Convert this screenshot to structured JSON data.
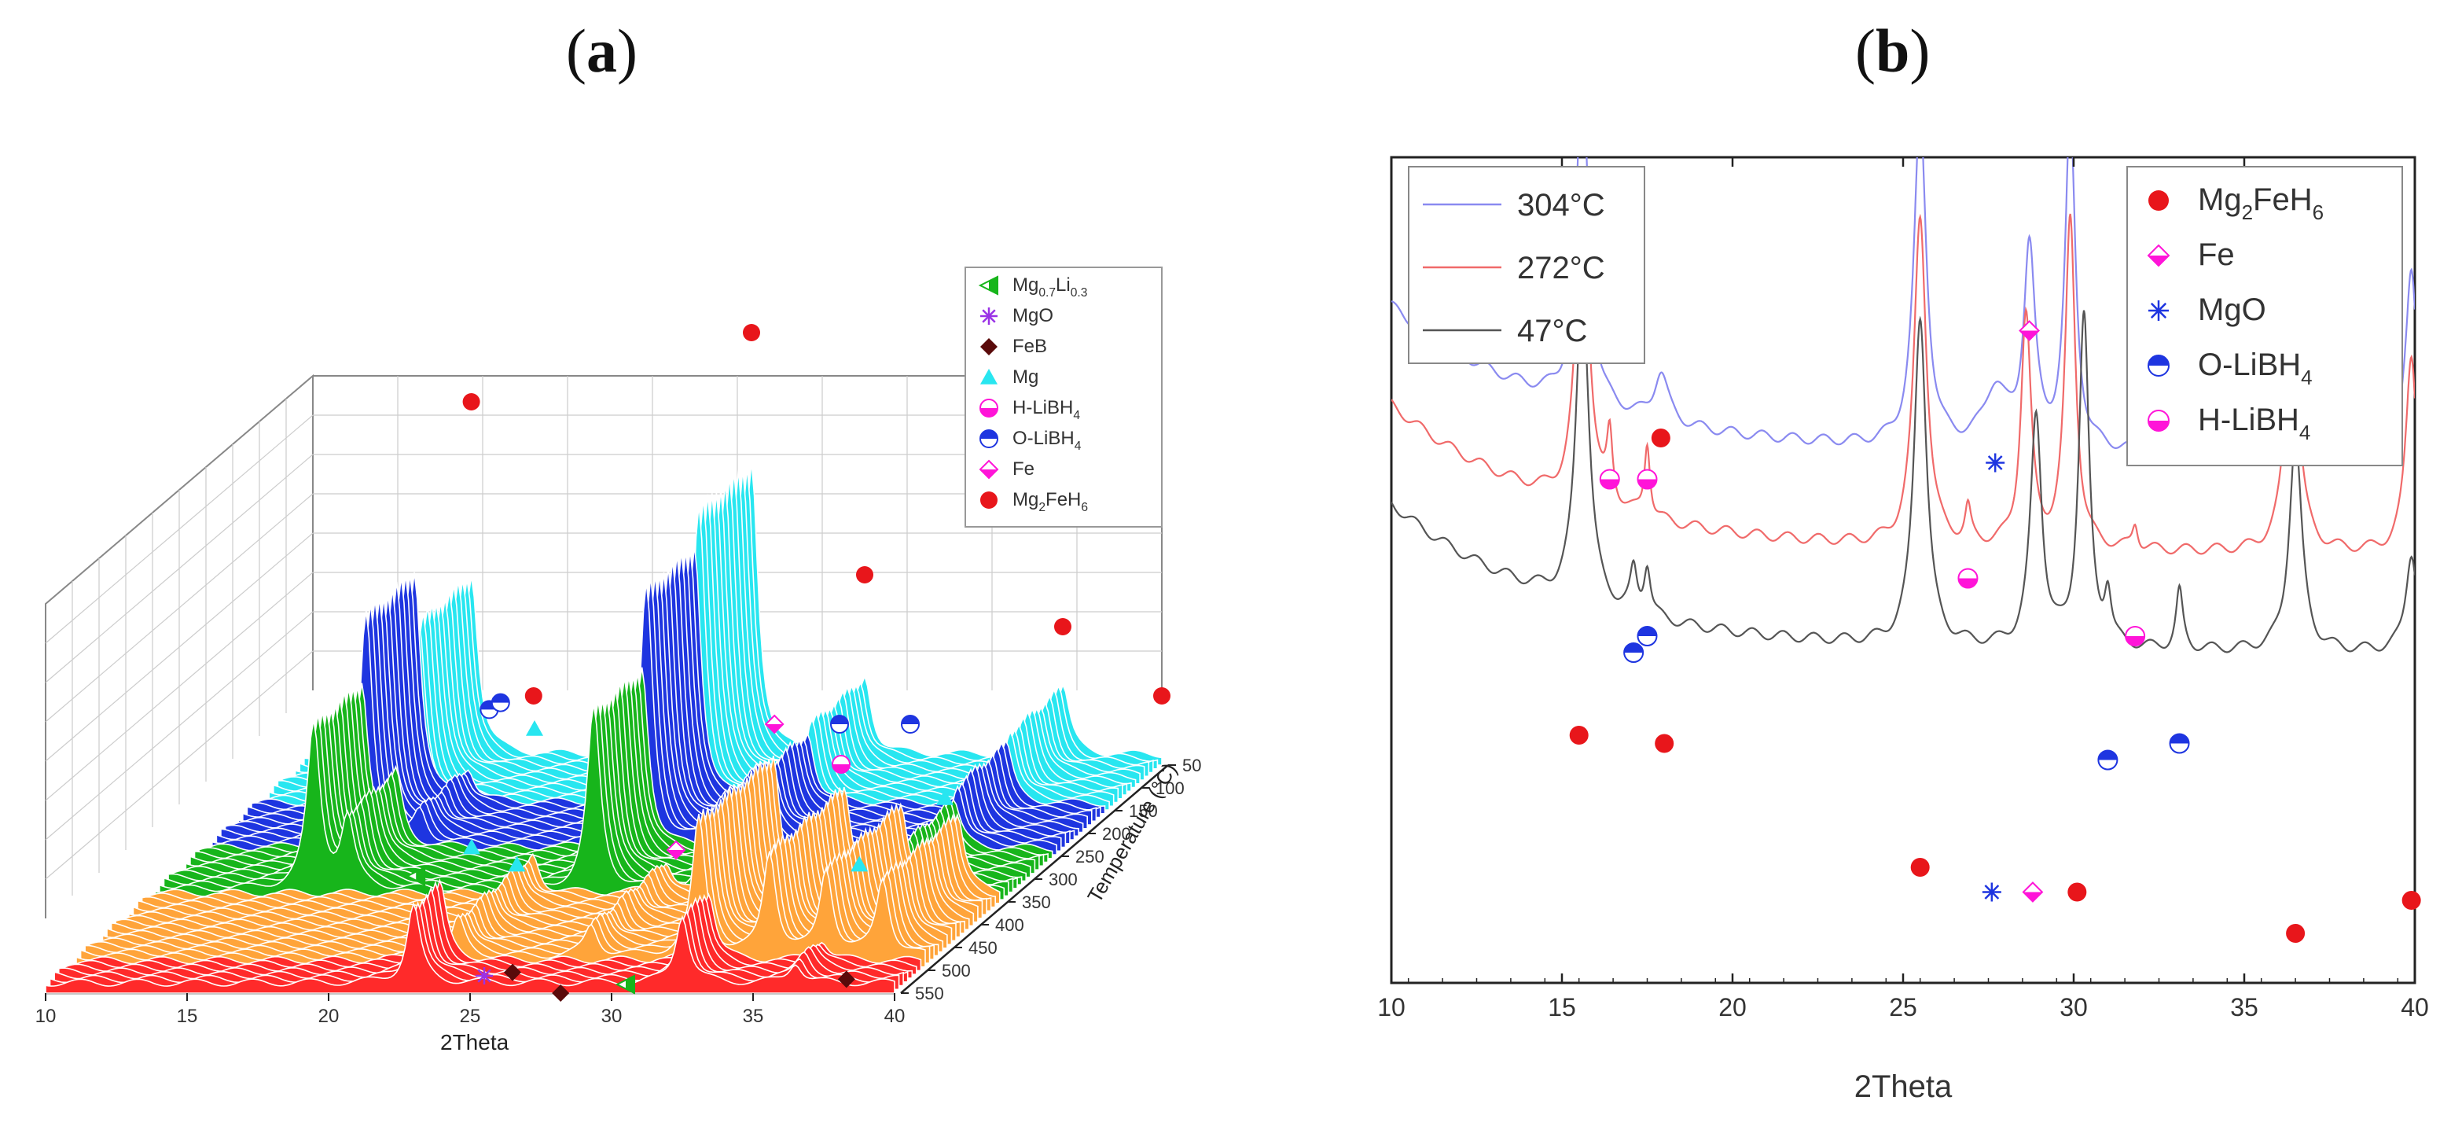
{
  "panels": {
    "a": {
      "label_open": "(",
      "letter": "a",
      "label_close": ")"
    },
    "b": {
      "label_open": "(",
      "letter": "b",
      "label_close": ")"
    }
  },
  "colors": {
    "red_marker": "#e8161b",
    "cyan": "#28e6f0",
    "blue": "#1e35e0",
    "green": "#17b51b",
    "orange": "#ffa43a",
    "red_trace": "#ff2a2a",
    "magenta": "#ff14d8",
    "purple": "#9a32e6",
    "dark_brown": "#5a0a0a",
    "trace_304": "#8a8af0",
    "trace_272": "#f06a6a",
    "trace_47": "#555555"
  },
  "chart_data": [
    {
      "type": "line",
      "title": "(a)",
      "xlabel": "2Theta",
      "ylabel": "Temperature (°C)",
      "xlim": [
        10,
        40
      ],
      "x_ticks": [
        "10",
        "15",
        "20",
        "25",
        "30",
        "35",
        "40"
      ],
      "temperature_ticks": [
        "50",
        "100",
        "150",
        "200",
        "250",
        "300",
        "350",
        "400",
        "450",
        "500",
        "550"
      ],
      "temperature_axis_label": "Temperature (°C)",
      "grid": true,
      "legend_position": "top-right",
      "legend": [
        {
          "parts": [
            {
              "t": "Mg",
              "s": "base"
            },
            {
              "t": "0.7",
              "s": "sub"
            },
            {
              "t": "Li",
              "s": "base"
            },
            {
              "t": "0.3",
              "s": "sub"
            }
          ],
          "marker": "half-triangle",
          "color": "#17b51b"
        },
        {
          "parts": [
            {
              "t": "MgO",
              "s": "base"
            }
          ],
          "marker": "asterisk",
          "color": "#9a32e6"
        },
        {
          "parts": [
            {
              "t": "FeB",
              "s": "base"
            }
          ],
          "marker": "diamond",
          "color": "#5a0a0a"
        },
        {
          "parts": [
            {
              "t": "Mg",
              "s": "base"
            }
          ],
          "marker": "triangle",
          "color": "#28e6f0"
        },
        {
          "parts": [
            {
              "t": "H-LiBH",
              "s": "base"
            },
            {
              "t": "4",
              "s": "sub"
            }
          ],
          "marker": "half-circle-h",
          "color": "#ff14d8"
        },
        {
          "parts": [
            {
              "t": "O-LiBH",
              "s": "base"
            },
            {
              "t": "4",
              "s": "sub"
            }
          ],
          "marker": "half-circle-o",
          "color": "#1e35e0"
        },
        {
          "parts": [
            {
              "t": "Fe",
              "s": "base"
            }
          ],
          "marker": "half-diamond",
          "color": "#ff14d8"
        },
        {
          "parts": [
            {
              "t": "Mg",
              "s": "base"
            },
            {
              "t": "2",
              "s": "sub"
            },
            {
              "t": "FeH",
              "s": "base"
            },
            {
              "t": "6",
              "s": "sub"
            }
          ],
          "marker": "circle",
          "color": "#e8161b"
        }
      ],
      "temperature_bands": [
        {
          "from_c": 50,
          "to_c": 150,
          "color": "#28e6f0"
        },
        {
          "from_c": 150,
          "to_c": 250,
          "color": "#1e35e0"
        },
        {
          "from_c": 250,
          "to_c": 350,
          "color": "#17b51b"
        },
        {
          "from_c": 350,
          "to_c": 500,
          "color": "#ffa43a"
        },
        {
          "from_c": 500,
          "to_c": 550,
          "color": "#ff2a2a"
        }
      ],
      "band_peaks": [
        {
          "band": 0,
          "peaks": [
            [
              15.6,
              105
            ],
            [
              25.5,
              170
            ],
            [
              29.5,
              45
            ],
            [
              36.5,
              40
            ]
          ]
        },
        {
          "band": 1,
          "peaks": [
            [
              15.6,
              135
            ],
            [
              25.5,
              150
            ],
            [
              29.5,
              40
            ],
            [
              36.5,
              35
            ],
            [
              17.5,
              18
            ],
            [
              28.0,
              22
            ]
          ]
        },
        {
          "band": 2,
          "peaks": [
            [
              15.6,
              95
            ],
            [
              25.5,
              105
            ],
            [
              29.5,
              30
            ],
            [
              36.5,
              28
            ],
            [
              16.8,
              40
            ]
          ]
        },
        {
          "band": 3,
          "peaks": [
            [
              32.0,
              80
            ],
            [
              34.5,
              60
            ],
            [
              36.5,
              50
            ],
            [
              38.5,
              45
            ],
            [
              23.5,
              22
            ],
            [
              28.2,
              18
            ]
          ]
        },
        {
          "band": 4,
          "peaks": [
            [
              23.0,
              45
            ],
            [
              32.5,
              40
            ],
            [
              36.5,
              12
            ]
          ]
        }
      ]
    },
    {
      "type": "line",
      "title": "(b)",
      "xlabel": "2Theta",
      "ylabel": "",
      "xlim": [
        10,
        40
      ],
      "ylim": [
        0,
        100
      ],
      "x_ticks": [
        "10",
        "15",
        "20",
        "25",
        "30",
        "35",
        "40"
      ],
      "legend_position": "top-left",
      "series": [
        {
          "name": "304°C",
          "color": "#8a8af0",
          "baseline": 82,
          "peaks": [
            [
              15.6,
              40,
              0.22
            ],
            [
              17.9,
              6,
              0.25
            ],
            [
              25.5,
              40,
              0.22
            ],
            [
              27.7,
              7,
              0.4
            ],
            [
              28.7,
              24,
              0.2
            ],
            [
              29.9,
              40,
              0.18
            ],
            [
              36.4,
              30,
              0.22
            ],
            [
              39.9,
              22,
              0.2
            ]
          ]
        },
        {
          "name": "272°C",
          "color": "#f06a6a",
          "baseline": 70,
          "peaks": [
            [
              15.6,
              40,
              0.22
            ],
            [
              16.4,
              8,
              0.1
            ],
            [
              17.5,
              9,
              0.1
            ],
            [
              25.5,
              40,
              0.22
            ],
            [
              26.9,
              4,
              0.1
            ],
            [
              28.6,
              28,
              0.18
            ],
            [
              29.9,
              40,
              0.18
            ],
            [
              31.8,
              3,
              0.1
            ],
            [
              36.4,
              32,
              0.22
            ],
            [
              39.9,
              24,
              0.2
            ]
          ]
        },
        {
          "name": "47°C",
          "color": "#555555",
          "baseline": 58,
          "peaks": [
            [
              15.6,
              40,
              0.22
            ],
            [
              17.1,
              5,
              0.12
            ],
            [
              17.5,
              6,
              0.12
            ],
            [
              25.5,
              40,
              0.22
            ],
            [
              28.9,
              28,
              0.2
            ],
            [
              30.3,
              40,
              0.18
            ],
            [
              31.0,
              6,
              0.12
            ],
            [
              33.1,
              7,
              0.12
            ],
            [
              36.5,
              26,
              0.22
            ],
            [
              39.9,
              12,
              0.2
            ]
          ]
        }
      ],
      "legend": [
        {
          "parts": [
            {
              "t": "Mg",
              "s": "base"
            },
            {
              "t": "2",
              "s": "sub"
            },
            {
              "t": "FeH",
              "s": "base"
            },
            {
              "t": "6",
              "s": "sub"
            }
          ],
          "marker": "circle",
          "color": "#e8161b"
        },
        {
          "parts": [
            {
              "t": "Fe",
              "s": "base"
            }
          ],
          "marker": "half-diamond",
          "color": "#ff14d8"
        },
        {
          "parts": [
            {
              "t": "MgO",
              "s": "base"
            }
          ],
          "marker": "asterisk",
          "color": "#1e35e0"
        },
        {
          "parts": [
            {
              "t": "O-LiBH",
              "s": "base"
            },
            {
              "t": "4",
              "s": "sub"
            }
          ],
          "marker": "half-circle-o",
          "color": "#1e35e0"
        },
        {
          "parts": [
            {
              "t": "H-LiBH",
              "s": "base"
            },
            {
              "t": "4",
              "s": "sub"
            }
          ],
          "marker": "half-circle-h",
          "color": "#ff14d8"
        }
      ]
    }
  ]
}
